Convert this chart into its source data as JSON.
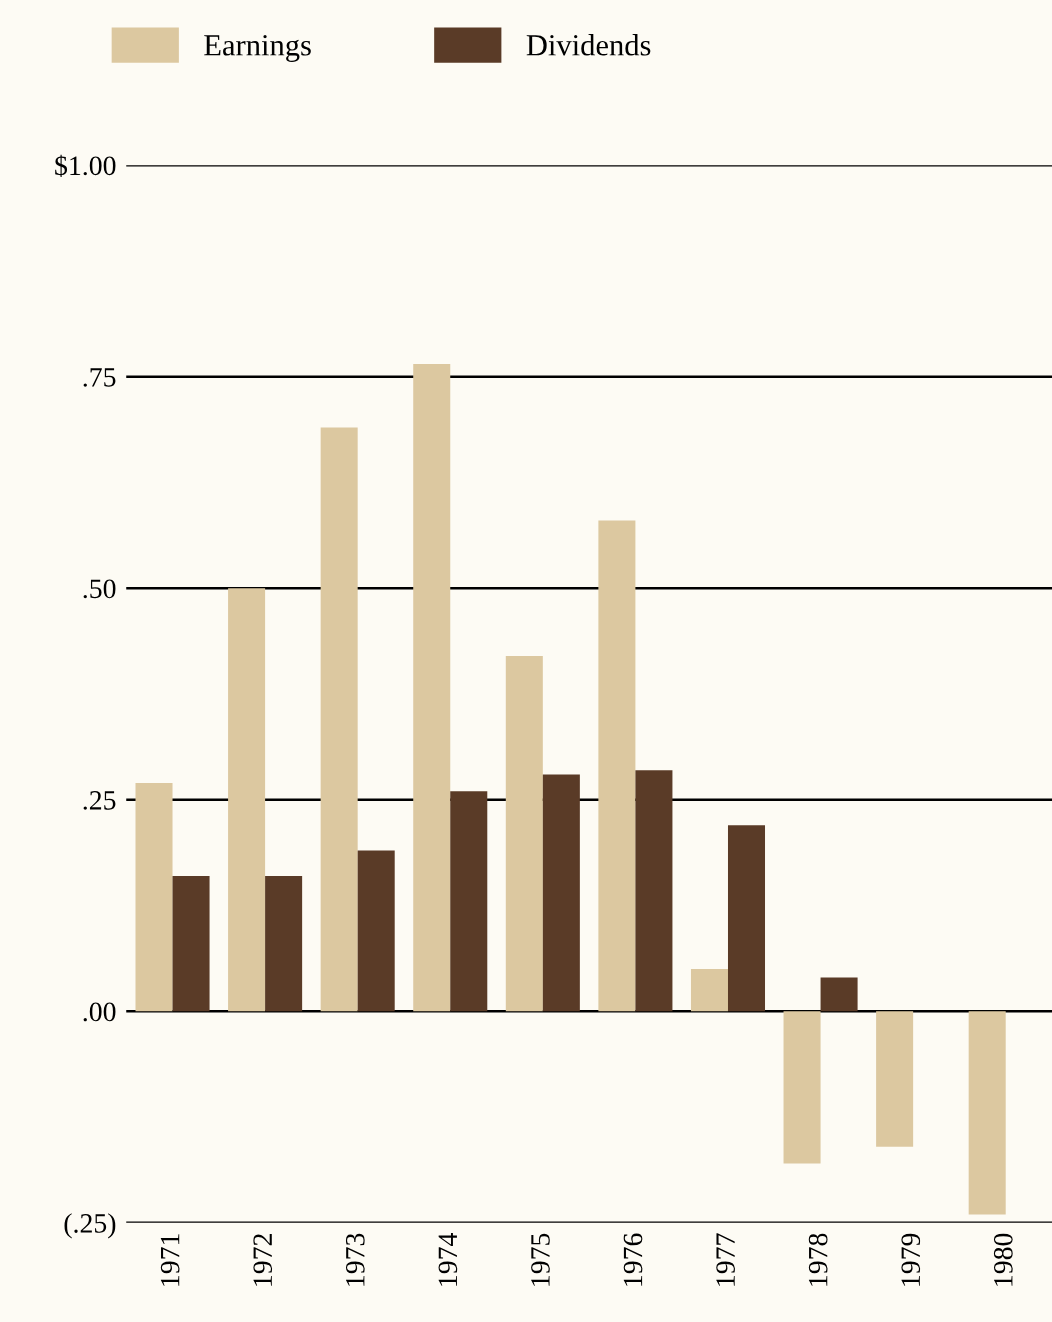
{
  "chart_data": {
    "type": "bar",
    "categories": [
      "1971",
      "1972",
      "1973",
      "1974",
      "1975",
      "1976",
      "1977",
      "1978",
      "1979",
      "1980"
    ],
    "series": [
      {
        "name": "Earnings",
        "color": "#dcc8a0",
        "values": [
          0.27,
          0.5,
          0.69,
          0.765,
          0.42,
          0.58,
          0.05,
          -0.18,
          -0.16,
          -0.24
        ]
      },
      {
        "name": "Dividends",
        "color": "#5a3b27",
        "values": [
          0.16,
          0.16,
          0.19,
          0.26,
          0.28,
          0.285,
          0.22,
          0.04,
          null,
          null
        ]
      }
    ],
    "ylim": [
      -0.25,
      1.0
    ],
    "yticks": [
      {
        "value": -0.25,
        "label": "(.25)"
      },
      {
        "value": 0,
        "label": ".00"
      },
      {
        "value": 0.25,
        "label": ".25"
      },
      {
        "value": 0.5,
        "label": ".50"
      },
      {
        "value": 0.75,
        "label": ".75"
      },
      {
        "value": 1.0,
        "label": "$1.00"
      }
    ],
    "grid": "y",
    "legend": "top left"
  }
}
